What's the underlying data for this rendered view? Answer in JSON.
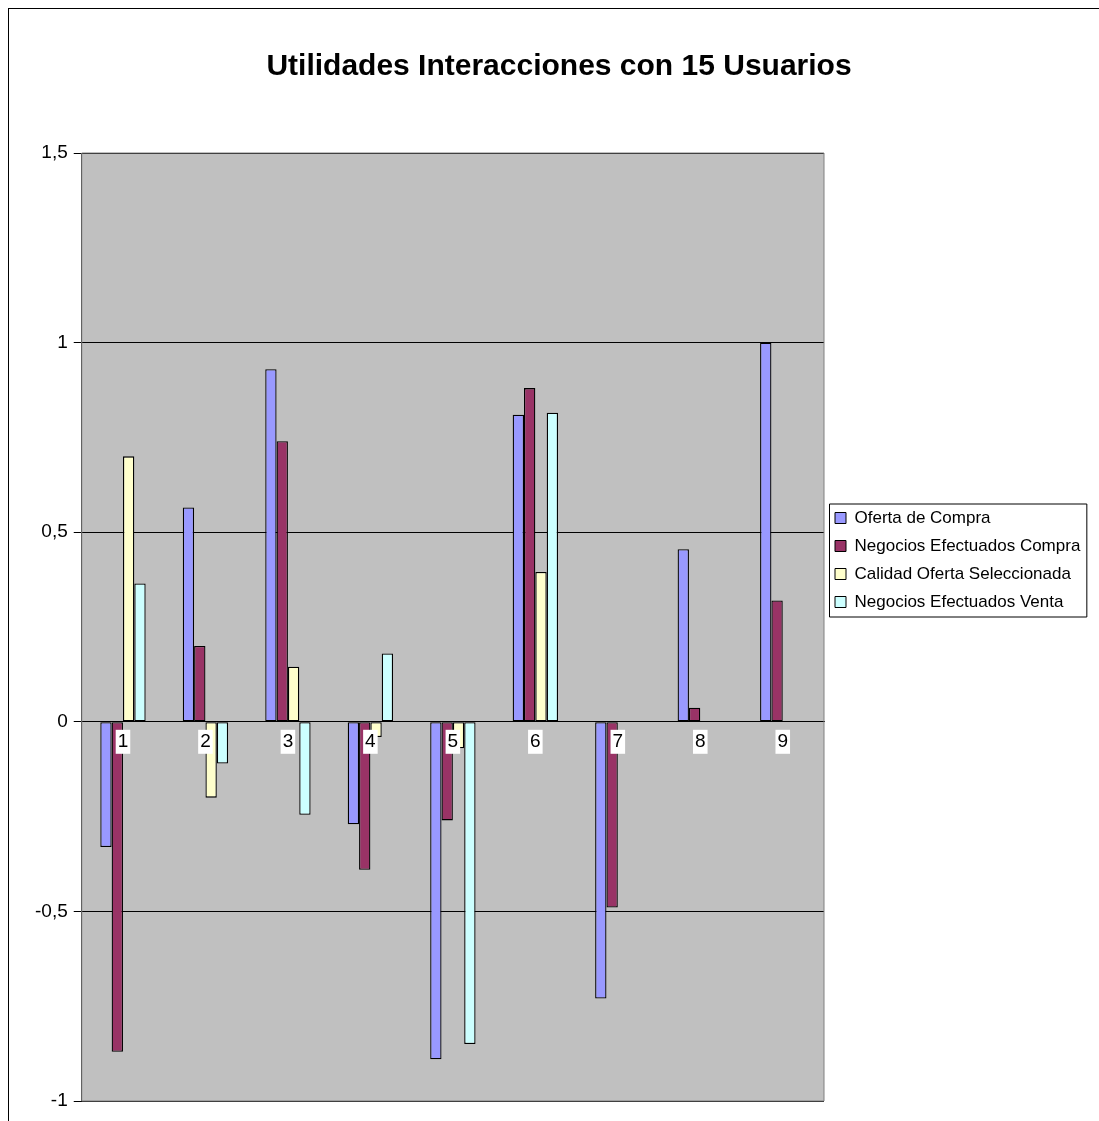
{
  "chart_data": {
    "type": "bar",
    "title": "Utilidades Interacciones con 15 Usuarios",
    "categories": [
      "1",
      "2",
      "3",
      "4",
      "5",
      "6",
      "7",
      "8",
      "9"
    ],
    "series": [
      {
        "name": "Oferta de Compra",
        "color": "#9999ff",
        "values": [
          -0.33,
          0.565,
          0.93,
          -0.27,
          -0.89,
          0.81,
          -0.73,
          0.455,
          1.0
        ]
      },
      {
        "name": "Negocios Efectuados Compra",
        "color": "#993366",
        "values": [
          -0.87,
          0.2,
          0.74,
          -0.39,
          -0.26,
          0.88,
          -0.49,
          0.037,
          0.32
        ]
      },
      {
        "name": "Calidad Oferta Seleccionada",
        "color": "#ffffcc",
        "values": [
          0.7,
          -0.2,
          0.145,
          -0.04,
          -0.07,
          0.395,
          null,
          null,
          null
        ]
      },
      {
        "name": "Negocios Efectuados Venta",
        "color": "#ccffff",
        "values": [
          0.365,
          -0.11,
          -0.245,
          0.18,
          -0.85,
          0.815,
          null,
          null,
          null
        ]
      }
    ],
    "ylim": [
      -1,
      1.5
    ],
    "yticks": [
      {
        "value": -1,
        "label": "-1"
      },
      {
        "value": -0.5,
        "label": "-0,5"
      },
      {
        "value": 0,
        "label": "0"
      },
      {
        "value": 0.5,
        "label": "0,5"
      },
      {
        "value": 1,
        "label": "1"
      },
      {
        "value": 1.5,
        "label": "1,5"
      }
    ],
    "grid": "y",
    "legend": "right"
  }
}
